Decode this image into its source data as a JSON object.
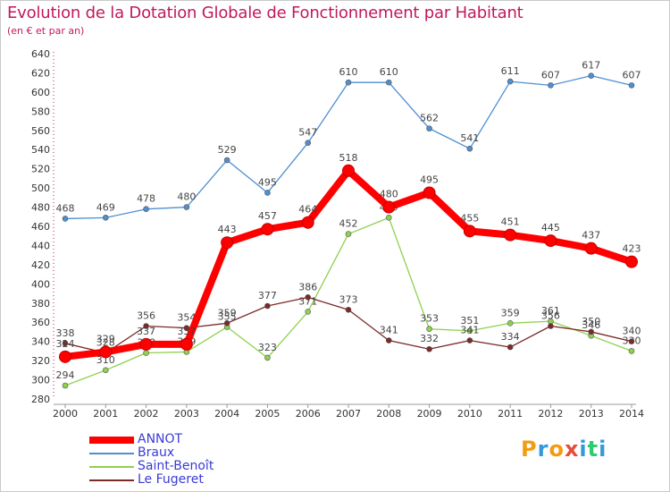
{
  "chart_data": {
    "type": "line",
    "title": "Evolution de la Dotation Globale de Fonctionnement par Habitant",
    "subtitle": "(en € et par an)",
    "xlabel": "",
    "ylabel": "",
    "categories": [
      "2000",
      "2001",
      "2002",
      "2003",
      "2004",
      "2005",
      "2006",
      "2007",
      "2008",
      "2009",
      "2010",
      "2011",
      "2012",
      "2013",
      "2014"
    ],
    "ylim": [
      280,
      640
    ],
    "yticks": [
      280,
      300,
      320,
      340,
      360,
      380,
      400,
      420,
      440,
      460,
      480,
      500,
      520,
      540,
      560,
      580,
      600,
      620,
      640
    ],
    "grid": false,
    "legend_position": "bottom-left",
    "series": [
      {
        "name": "ANNOT",
        "color": "#ff0000",
        "values": [
          324,
          329,
          337,
          337,
          443,
          457,
          464,
          518,
          480,
          495,
          455,
          451,
          445,
          437,
          423
        ]
      },
      {
        "name": "Braux",
        "color": "#4f8fd1",
        "values": [
          468,
          469,
          478,
          480,
          529,
          495,
          547,
          610,
          610,
          562,
          541,
          611,
          607,
          617,
          607
        ]
      },
      {
        "name": "Saint-Benoît",
        "color": "#8fd14f",
        "values": [
          294,
          310,
          328,
          329,
          355,
          323,
          371,
          452,
          469,
          353,
          351,
          359,
          361,
          346,
          330
        ]
      },
      {
        "name": "Le Fugeret",
        "color": "#7a2a2a",
        "values": [
          338,
          328,
          356,
          354,
          359,
          377,
          386,
          373,
          341,
          332,
          341,
          334,
          356,
          350,
          340
        ]
      }
    ]
  },
  "brand": {
    "text": "Proxiti",
    "letters": [
      "P",
      "r",
      "o",
      "x",
      "i",
      "t",
      "i"
    ],
    "colors": [
      "#f39c12",
      "#3498db",
      "#f39c12",
      "#e74c3c",
      "#3498db",
      "#2ecc71",
      "#3498db"
    ]
  }
}
